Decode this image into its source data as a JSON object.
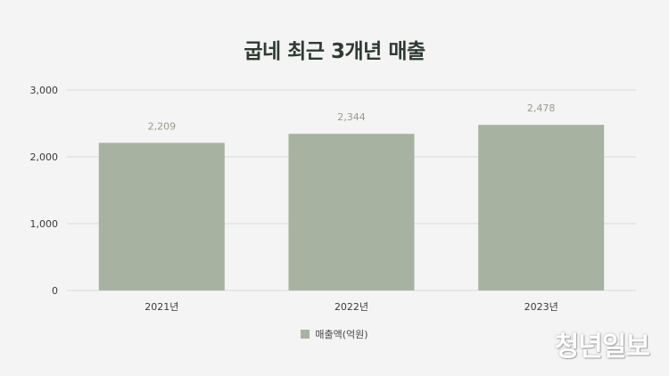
{
  "chart_data": {
    "type": "bar",
    "title": "굽네 최근 3개년 매출",
    "categories": [
      "2021년",
      "2022년",
      "2023년"
    ],
    "series": [
      {
        "name": "매출액(억원)",
        "values": [
          2209,
          2344,
          2478
        ]
      }
    ],
    "data_labels": [
      "2,209",
      "2,344",
      "2,478"
    ],
    "ylim": [
      0,
      3000
    ],
    "yticks": [
      0,
      1000,
      2000,
      3000
    ],
    "ytick_labels": [
      "0",
      "1,000",
      "2,000",
      "3,000"
    ],
    "grid": true,
    "legend_position": "bottom",
    "bar_color": "#a8b2a0"
  },
  "watermark": "청년일보"
}
